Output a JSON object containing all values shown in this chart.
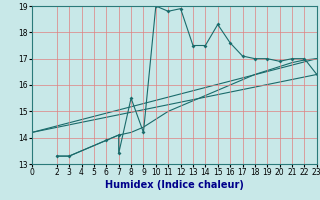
{
  "title": "",
  "xlabel": "Humidex (Indice chaleur)",
  "ylabel": "",
  "bg_color": "#c8e8e8",
  "grid_color": "#e08080",
  "line_color": "#1a6b6b",
  "xlim": [
    0,
    23
  ],
  "ylim": [
    13,
    19
  ],
  "xticks": [
    0,
    2,
    3,
    4,
    5,
    6,
    7,
    8,
    9,
    10,
    11,
    12,
    13,
    14,
    15,
    16,
    17,
    18,
    19,
    20,
    21,
    22,
    23
  ],
  "yticks": [
    13,
    14,
    15,
    16,
    17,
    18,
    19
  ],
  "line1_x": [
    2,
    3,
    6,
    7,
    7,
    8,
    9,
    10,
    11,
    12,
    13,
    14,
    15,
    16,
    17,
    18,
    19,
    20,
    21,
    22,
    23
  ],
  "line1_y": [
    13.3,
    13.3,
    13.9,
    14.1,
    13.4,
    15.5,
    14.2,
    19.0,
    18.8,
    18.9,
    17.5,
    17.5,
    18.3,
    17.6,
    17.1,
    17.0,
    17.0,
    16.9,
    17.0,
    17.0,
    16.4
  ],
  "line2_x": [
    0,
    23
  ],
  "line2_y": [
    14.2,
    16.4
  ],
  "line3_x": [
    0,
    23
  ],
  "line3_y": [
    14.2,
    17.0
  ],
  "line4_x": [
    2,
    3,
    6,
    7,
    8,
    9,
    10,
    11,
    12,
    13,
    14,
    15,
    16,
    17,
    18,
    19,
    20,
    21,
    22,
    23
  ],
  "line4_y": [
    13.3,
    13.3,
    13.9,
    14.1,
    14.2,
    14.4,
    14.7,
    15.0,
    15.2,
    15.4,
    15.6,
    15.8,
    16.0,
    16.2,
    16.4,
    16.55,
    16.7,
    16.85,
    16.95,
    17.0
  ],
  "xlabel_color": "#00008b",
  "tick_labelsize": 5.5,
  "xlabel_fontsize": 7
}
